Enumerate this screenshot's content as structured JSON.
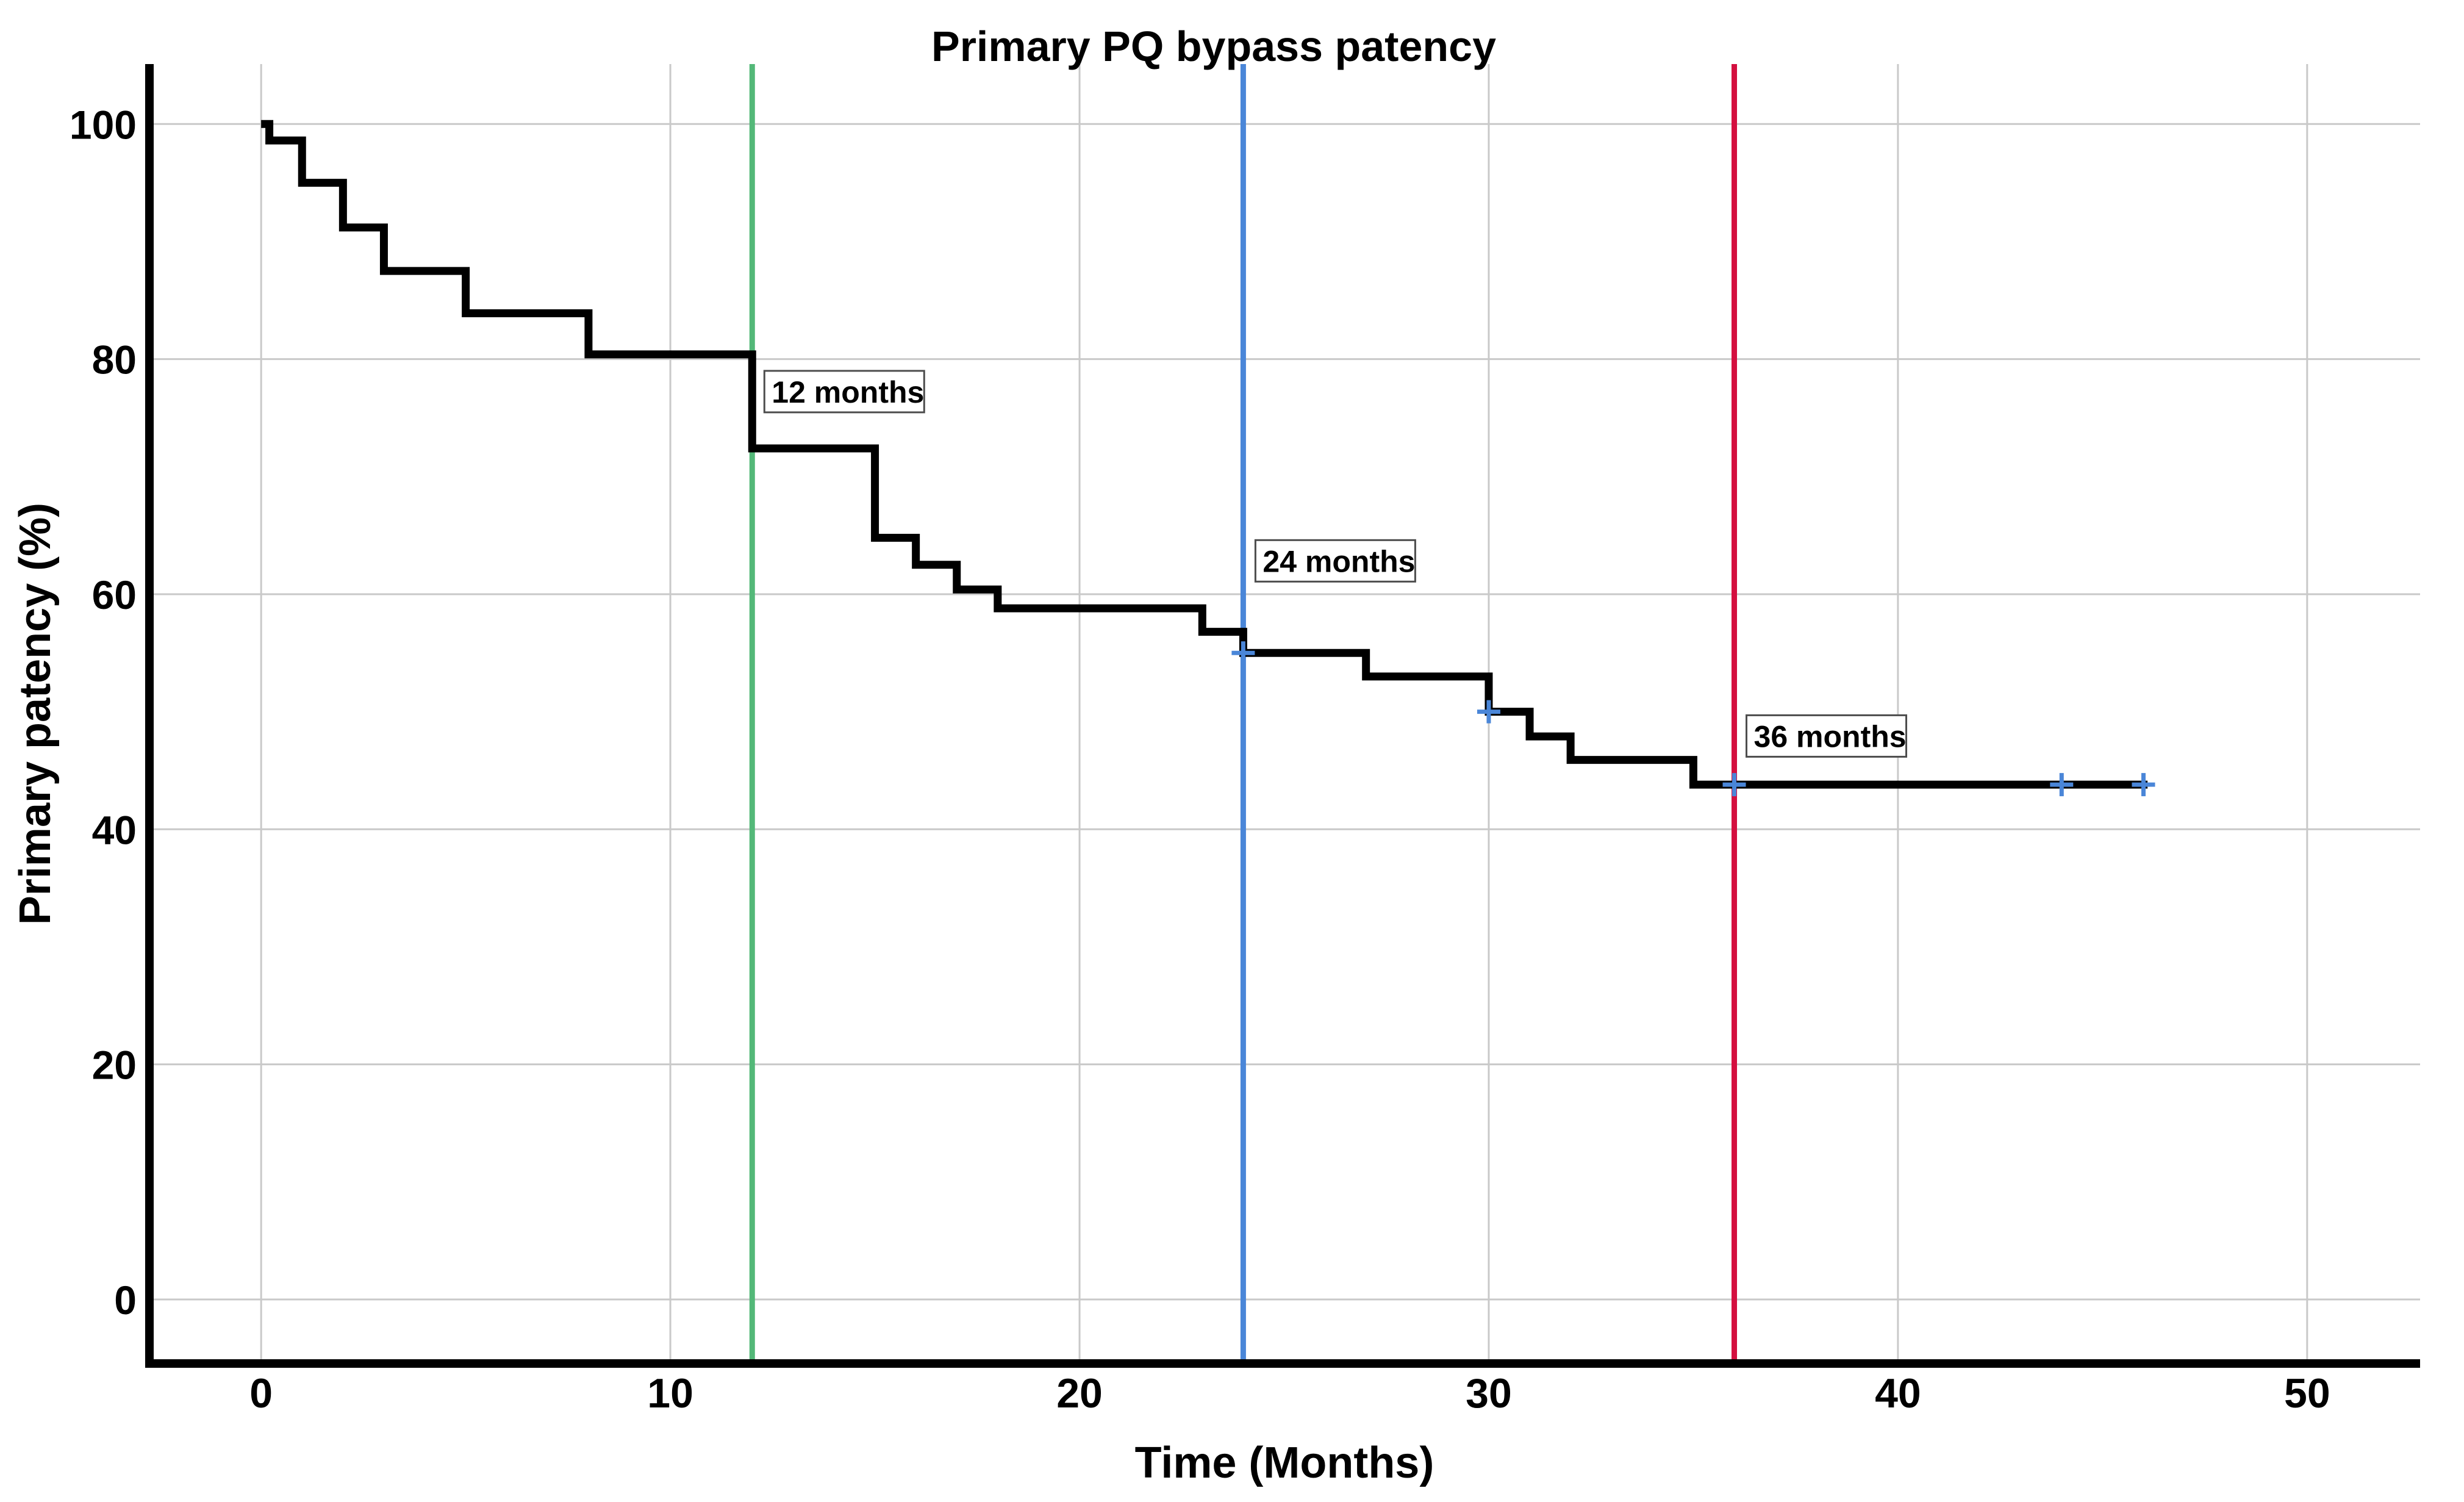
{
  "chart": {
    "title": "Primary PQ bypass patency",
    "x_label": "Time (Months)",
    "y_label": "Primary patency (%)"
  },
  "chart_data": {
    "type": "line",
    "subtype": "kaplan-meier-step",
    "title": "Primary PQ bypass patency",
    "xlabel": "Time (Months)",
    "ylabel": "Primary patency (%)",
    "xlim": [
      0,
      50
    ],
    "ylim": [
      0,
      100
    ],
    "x_ticks": [
      0,
      10,
      20,
      30,
      40,
      50
    ],
    "y_ticks": [
      0,
      20,
      40,
      60,
      80,
      100
    ],
    "grid": true,
    "legend": false,
    "grid_color": "#c9c9c9",
    "axis_color": "#000000",
    "series": [
      {
        "name": "Primary PQ bypass patency",
        "color": "#000000",
        "step": "post",
        "points": [
          [
            0,
            100
          ],
          [
            0.2,
            98.6
          ],
          [
            1,
            95.0
          ],
          [
            2,
            91.2
          ],
          [
            3,
            87.5
          ],
          [
            5,
            83.9
          ],
          [
            8,
            80.4
          ],
          [
            12,
            72.4
          ],
          [
            15,
            64.8
          ],
          [
            16,
            62.5
          ],
          [
            17,
            60.4
          ],
          [
            18,
            58.8
          ],
          [
            23,
            56.8
          ],
          [
            24,
            55.0
          ],
          [
            27,
            53.0
          ],
          [
            30,
            50.0
          ],
          [
            31,
            47.9
          ],
          [
            32,
            45.9
          ],
          [
            35,
            43.8
          ],
          [
            46.1,
            43.8
          ]
        ]
      }
    ],
    "censor_marks": {
      "color": "#4a86d8",
      "points": [
        [
          24,
          55.0
        ],
        [
          30,
          50.0
        ],
        [
          36,
          43.8
        ],
        [
          44,
          43.8
        ],
        [
          46,
          43.8
        ]
      ]
    },
    "reference_lines": [
      {
        "x": 12,
        "label": "12 months",
        "color": "#53b878",
        "label_top_pct": 79.0
      },
      {
        "x": 24,
        "label": "24 months",
        "color": "#4a86d8",
        "label_top_pct": 64.6
      },
      {
        "x": 36,
        "label": "36 months",
        "color": "#d40f3f",
        "label_top_pct": 49.7
      }
    ],
    "annotation_box": {
      "fill": "#ffffff",
      "border": "#4d4d4d"
    }
  }
}
